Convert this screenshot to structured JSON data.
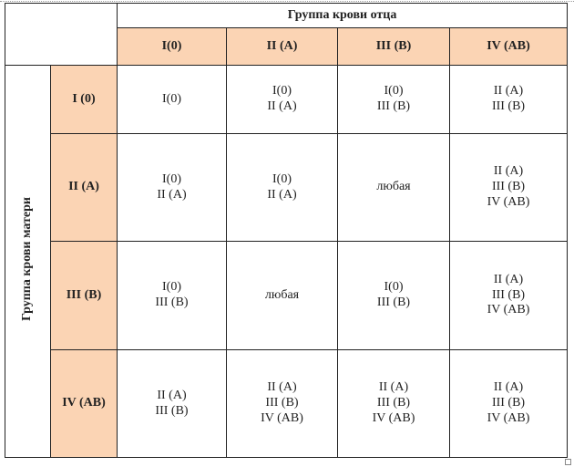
{
  "father_title": "Группа крови отца",
  "mother_title": "Группа крови матери",
  "col_headers": [
    "I(0)",
    "II (A)",
    "III (B)",
    "IV (AB)"
  ],
  "rows": [
    {
      "header": "I (0)",
      "cells": [
        [
          "I(0)"
        ],
        [
          "I(0)",
          "II (A)"
        ],
        [
          "I(0)",
          "III (B)"
        ],
        [
          "II (A)",
          "III (B)"
        ]
      ]
    },
    {
      "header": "II (A)",
      "cells": [
        [
          "I(0)",
          "II (A)"
        ],
        [
          "I(0)",
          "II (A)"
        ],
        [
          "любая"
        ],
        [
          "II (A)",
          "III (B)",
          "IV (AB)"
        ]
      ]
    },
    {
      "header": "III (B)",
      "cells": [
        [
          "I(0)",
          "III (B)"
        ],
        [
          "любая"
        ],
        [
          "I(0)",
          "III (B)"
        ],
        [
          "II (A)",
          "III (B)",
          "IV (AB)"
        ]
      ]
    },
    {
      "header": "IV (AB)",
      "cells": [
        [
          "II (A)",
          "III (B)"
        ],
        [
          "II (A)",
          "III (B)",
          "IV (AB)"
        ],
        [
          "II (A)",
          "III (B)",
          "IV (AB)"
        ],
        [
          "II (A)",
          "III (B)",
          "IV (AB)"
        ]
      ]
    }
  ]
}
